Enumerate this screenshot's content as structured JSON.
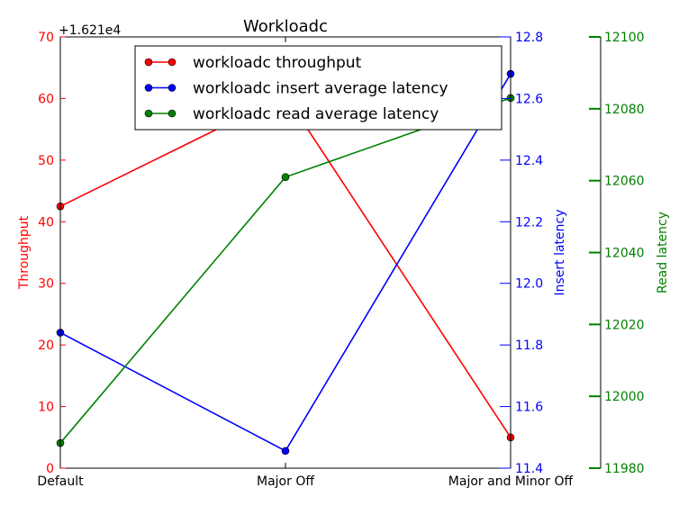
{
  "chart_data": {
    "type": "line",
    "title": "Workloadc",
    "categories": [
      "Default",
      "Major Off",
      "Major and Minor Off"
    ],
    "offset_label": "+1.621e4",
    "axes": {
      "throughput": {
        "label": "Throughput",
        "color": "#ff0000",
        "ylim": [
          0,
          70
        ],
        "ticks": [
          "0",
          "10",
          "20",
          "30",
          "40",
          "50",
          "60",
          "70"
        ],
        "tick_values": [
          0,
          10,
          20,
          30,
          40,
          50,
          60,
          70
        ]
      },
      "insert": {
        "label": "Insert latency",
        "color": "#0000ff",
        "ylim": [
          11.4,
          12.8
        ],
        "ticks": [
          "11.4",
          "11.6",
          "11.8",
          "12.0",
          "12.2",
          "12.4",
          "12.6",
          "12.8"
        ],
        "tick_values": [
          11.4,
          11.6,
          11.8,
          12.0,
          12.2,
          12.4,
          12.6,
          12.8
        ]
      },
      "read": {
        "label": "Read latency",
        "color": "#008000",
        "ylim": [
          11980,
          12100
        ],
        "ticks": [
          "11980",
          "12000",
          "12020",
          "12040",
          "12060",
          "12080",
          "12100"
        ],
        "tick_values": [
          11980,
          12000,
          12020,
          12040,
          12060,
          12080,
          12100
        ]
      }
    },
    "series": [
      {
        "name": "workloadc throughput",
        "axis": "throughput",
        "color": "#ff0000",
        "values": [
          42.5,
          60.5,
          5.0
        ]
      },
      {
        "name": "workloadc insert average latency",
        "axis": "insert",
        "color": "#0000ff",
        "values": [
          11.84,
          11.456,
          12.68
        ]
      },
      {
        "name": "workloadc read average latency",
        "axis": "read",
        "color": "#008000",
        "values": [
          11987,
          12061,
          12083
        ]
      }
    ],
    "legend_position": "top-center",
    "grid": false
  }
}
